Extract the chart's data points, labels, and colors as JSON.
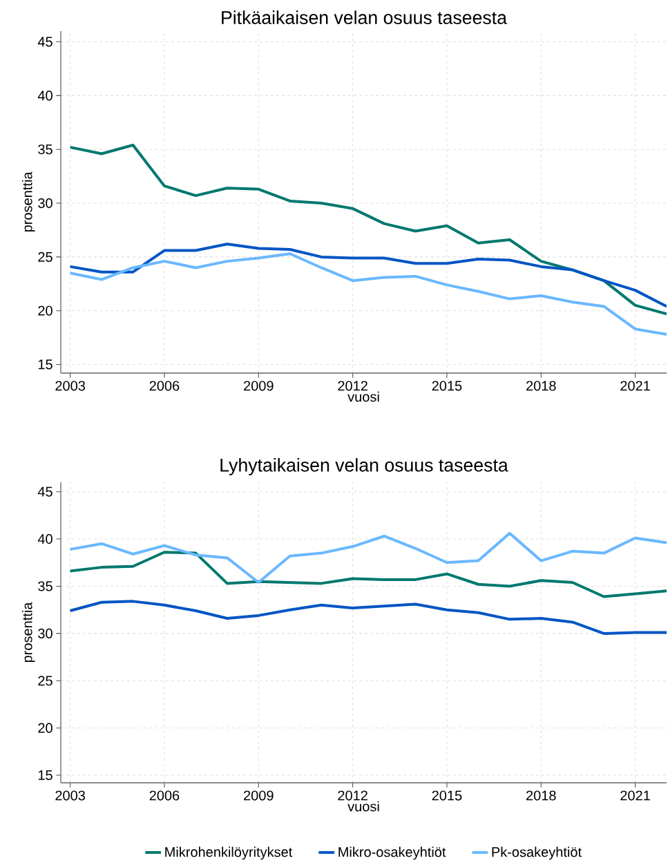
{
  "chart_data": [
    {
      "type": "line",
      "title": "Pitkäaikaisen velan osuus taseesta",
      "xlabel": "vuosi",
      "ylabel": "prosenttia",
      "x": [
        2003,
        2004,
        2005,
        2006,
        2007,
        2008,
        2009,
        2010,
        2011,
        2012,
        2013,
        2014,
        2015,
        2016,
        2017,
        2018,
        2019,
        2020,
        2021,
        2022
      ],
      "xlim": [
        2002.7,
        2022
      ],
      "xticks": [
        2003,
        2006,
        2009,
        2012,
        2015,
        2018,
        2021
      ],
      "ylim": [
        14.2,
        46
      ],
      "yticks": [
        15,
        20,
        25,
        30,
        35,
        40,
        45
      ],
      "grid": true,
      "legend": false,
      "marker": "none",
      "line_style": "solid",
      "series": [
        {
          "color": "#00786e",
          "values": [
            35.2,
            34.6,
            35.4,
            31.6,
            30.7,
            31.4,
            31.3,
            30.2,
            30.0,
            29.5,
            28.1,
            27.4,
            27.9,
            26.3,
            26.6,
            24.6,
            23.8,
            22.8,
            20.5,
            19.7
          ]
        },
        {
          "color": "#0055c4",
          "values": [
            24.1,
            23.6,
            23.6,
            25.6,
            25.6,
            26.2,
            25.8,
            25.7,
            25.0,
            24.9,
            24.9,
            24.4,
            24.4,
            24.8,
            24.7,
            24.1,
            23.8,
            22.8,
            21.9,
            20.4
          ]
        },
        {
          "color": "#6ab8ff",
          "values": [
            23.5,
            22.9,
            24.0,
            24.6,
            24.0,
            24.6,
            24.9,
            25.3,
            24.0,
            22.8,
            23.1,
            23.2,
            22.4,
            21.8,
            21.1,
            21.4,
            20.8,
            20.4,
            18.3,
            17.8
          ]
        }
      ]
    },
    {
      "type": "line",
      "title": "Lyhytaikaisen velan osuus taseesta",
      "xlabel": "vuosi",
      "ylabel": "prosenttia",
      "x": [
        2003,
        2004,
        2005,
        2006,
        2007,
        2008,
        2009,
        2010,
        2011,
        2012,
        2013,
        2014,
        2015,
        2016,
        2017,
        2018,
        2019,
        2020,
        2021,
        2022
      ],
      "xlim": [
        2002.7,
        2022
      ],
      "xticks": [
        2003,
        2006,
        2009,
        2012,
        2015,
        2018,
        2021
      ],
      "ylim": [
        14.2,
        46
      ],
      "yticks": [
        15,
        20,
        25,
        30,
        35,
        40,
        45
      ],
      "grid": true,
      "legend": "bottom",
      "marker": "none",
      "line_style": "solid",
      "series": [
        {
          "name": "Mikrohenkilöyritykset",
          "color": "#00786e",
          "values": [
            36.6,
            37.0,
            37.1,
            38.6,
            38.5,
            35.3,
            35.5,
            35.4,
            35.3,
            35.8,
            35.7,
            35.7,
            36.3,
            35.2,
            35.0,
            35.6,
            35.4,
            33.9,
            34.2,
            34.5
          ]
        },
        {
          "name": "Mikro-osakeyhtiöt",
          "color": "#0055c4",
          "values": [
            32.4,
            33.3,
            33.4,
            33.0,
            32.4,
            31.6,
            31.9,
            32.5,
            33.0,
            32.7,
            32.9,
            33.1,
            32.5,
            32.2,
            31.5,
            31.6,
            31.2,
            30.0,
            30.1,
            30.1
          ]
        },
        {
          "name": "Pk-osakeyhtiöt",
          "color": "#6ab8ff",
          "values": [
            38.9,
            39.5,
            38.4,
            39.3,
            38.3,
            38.0,
            35.4,
            38.2,
            38.5,
            39.2,
            40.3,
            39.0,
            37.5,
            37.7,
            40.6,
            37.7,
            38.7,
            38.5,
            40.1,
            39.6
          ]
        }
      ]
    }
  ]
}
